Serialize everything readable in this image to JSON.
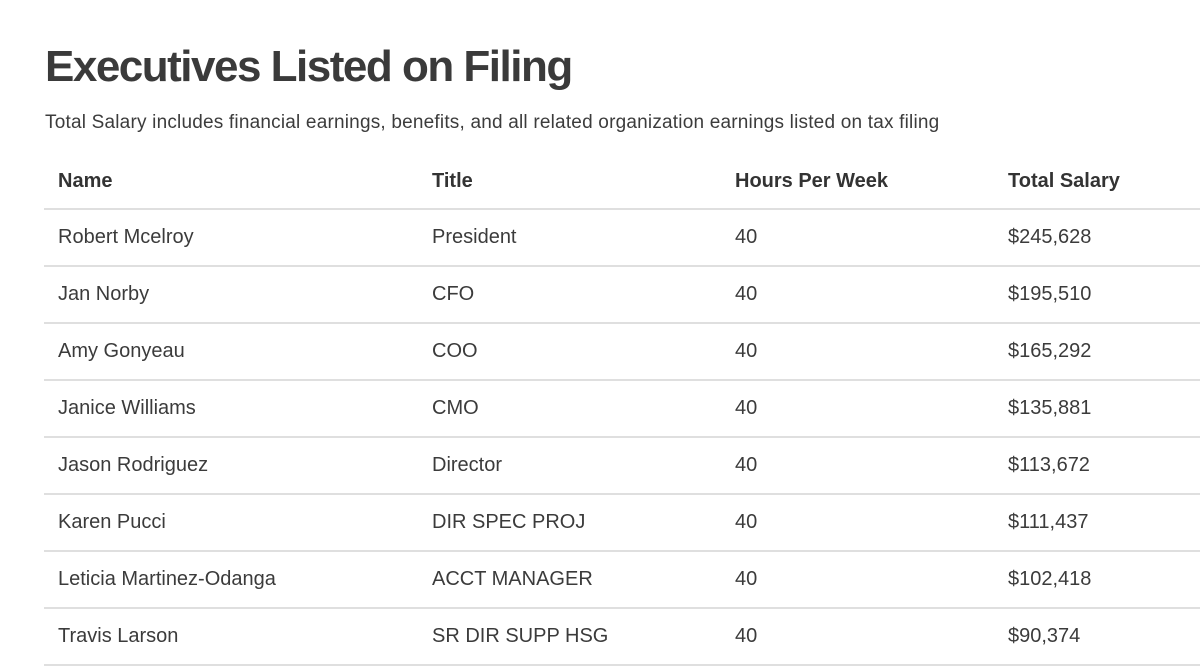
{
  "page": {
    "heading": "Executives Listed on Filing",
    "subtitle": "Total Salary includes financial earnings, benefits, and all related organization earnings listed on tax filing"
  },
  "table": {
    "columns": [
      {
        "key": "name",
        "label": "Name"
      },
      {
        "key": "title",
        "label": "Title"
      },
      {
        "key": "hours",
        "label": "Hours Per Week"
      },
      {
        "key": "salary",
        "label": "Total Salary"
      }
    ],
    "rows": [
      {
        "name": "Robert Mcelroy",
        "title": "President",
        "hours": "40",
        "salary": "$245,628"
      },
      {
        "name": "Jan Norby",
        "title": "CFO",
        "hours": "40",
        "salary": "$195,510"
      },
      {
        "name": "Amy Gonyeau",
        "title": "COO",
        "hours": "40",
        "salary": "$165,292"
      },
      {
        "name": "Janice Williams",
        "title": "CMO",
        "hours": "40",
        "salary": "$135,881"
      },
      {
        "name": "Jason Rodriguez",
        "title": "Director",
        "hours": "40",
        "salary": "$113,672"
      },
      {
        "name": "Karen Pucci",
        "title": "DIR SPEC PROJ",
        "hours": "40",
        "salary": "$111,437"
      },
      {
        "name": "Leticia Martinez-Odanga",
        "title": "ACCT MANAGER",
        "hours": "40",
        "salary": "$102,418"
      },
      {
        "name": "Travis Larson",
        "title": "SR DIR SUPP HSG",
        "hours": "40",
        "salary": "$90,374"
      }
    ]
  },
  "colors": {
    "background": "#ffffff",
    "heading_text": "#3a3a3a",
    "body_text": "#3b3b3b",
    "header_text": "#333333",
    "divider": "#dfdfdf"
  }
}
